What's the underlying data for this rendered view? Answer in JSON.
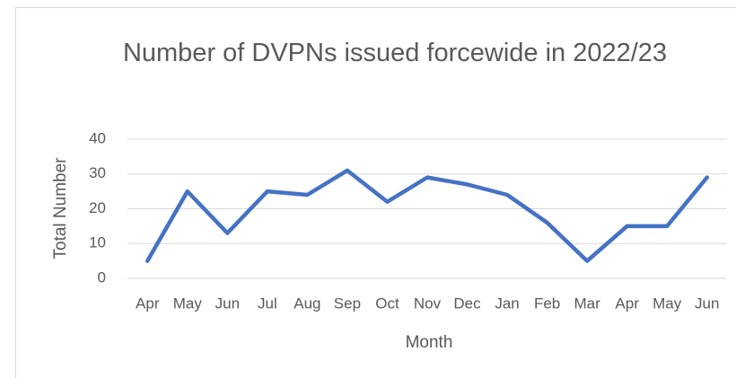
{
  "chart_data": {
    "type": "line",
    "title": "Number of DVPNs issued forcewide in 2022/23",
    "x_label": "Month",
    "y_label": "Total Number",
    "categories": [
      "Apr",
      "May",
      "Jun",
      "Jul",
      "Aug",
      "Sep",
      "Oct",
      "Nov",
      "Dec",
      "Jan",
      "Feb",
      "Mar",
      "Apr",
      "May",
      "Jun"
    ],
    "values": [
      5,
      25,
      13,
      25,
      24,
      31,
      22,
      29,
      27,
      24,
      16,
      5,
      15,
      15,
      29
    ],
    "color": "#4472c4",
    "ylim": [
      0,
      40
    ],
    "yticks": [
      0,
      10,
      20,
      30,
      40
    ],
    "grid": true
  }
}
